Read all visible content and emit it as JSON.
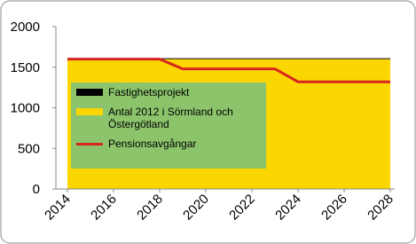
{
  "chart_data": {
    "type": "area",
    "x": [
      2014,
      2015,
      2016,
      2017,
      2018,
      2019,
      2020,
      2021,
      2022,
      2023,
      2024,
      2025,
      2026,
      2027,
      2028
    ],
    "series": [
      {
        "name": "Fastighetsprojekt",
        "color": "#000000",
        "kind": "stacked-area",
        "values": [
          10,
          10,
          10,
          10,
          10,
          10,
          10,
          10,
          10,
          10,
          10,
          10,
          10,
          10,
          10
        ]
      },
      {
        "name": "Antal 2012 i Sörmland och Östergötland",
        "color": "#fcd600",
        "kind": "stacked-area",
        "values": [
          1600,
          1600,
          1600,
          1600,
          1600,
          1600,
          1600,
          1600,
          1600,
          1600,
          1600,
          1600,
          1600,
          1600,
          1600
        ]
      },
      {
        "name": "Pensionsavgångar",
        "color": "#d6261f",
        "kind": "line",
        "values": [
          1600,
          1600,
          1600,
          1600,
          1600,
          1480,
          1480,
          1480,
          1480,
          1480,
          1320,
          1320,
          1320,
          1320,
          1320
        ]
      }
    ],
    "xlim": [
      2014,
      2028
    ],
    "xticks": [
      2014,
      2016,
      2018,
      2020,
      2022,
      2024,
      2026,
      2028
    ],
    "ylim": [
      0,
      2000
    ],
    "yticks": [
      0,
      500,
      1000,
      1500,
      2000
    ],
    "grid": false
  }
}
